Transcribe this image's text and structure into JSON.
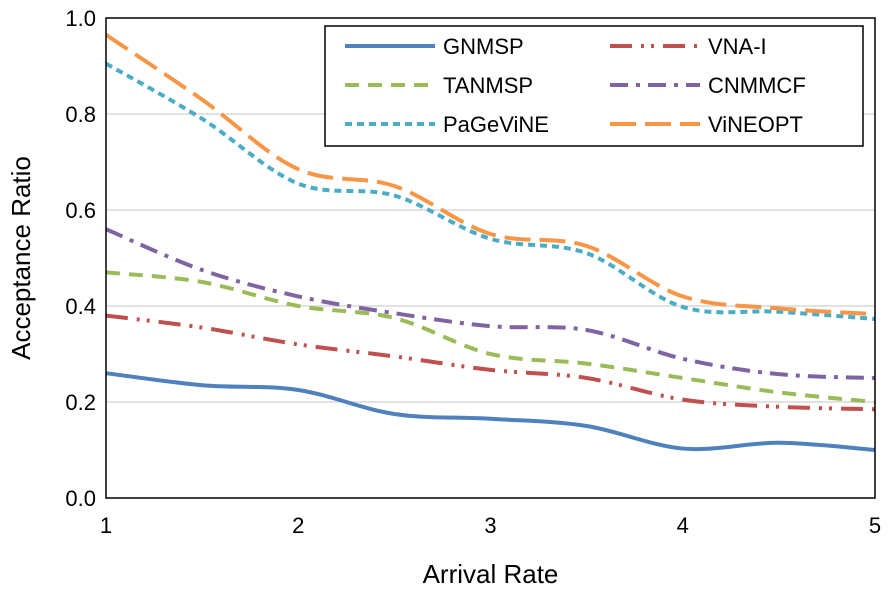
{
  "chart_data": {
    "type": "line",
    "title": "",
    "xlabel": "Arrival Rate",
    "ylabel": "Acceptance Ratio",
    "xlim": [
      1,
      5
    ],
    "ylim": [
      0,
      1
    ],
    "x_ticks": [
      1,
      2,
      3,
      4,
      5
    ],
    "x_tick_labels": [
      "1",
      "2",
      "3",
      "4",
      "5"
    ],
    "y_ticks": [
      0,
      0.2,
      0.4,
      0.6,
      0.8,
      1.0
    ],
    "y_tick_labels": [
      "0.0",
      "0.2",
      "0.4",
      "0.6",
      "0.8",
      "1.0"
    ],
    "grid": "horizontal",
    "legend_position": "top-right",
    "series": [
      {
        "name": "GNMSP",
        "color": "#4f81bd",
        "dash": "solid",
        "x": [
          1,
          1.5,
          2,
          2.5,
          3,
          3.5,
          4,
          4.5,
          5
        ],
        "values": [
          0.26,
          0.235,
          0.225,
          0.175,
          0.165,
          0.15,
          0.103,
          0.115,
          0.1
        ]
      },
      {
        "name": "TANMSP",
        "color": "#9bbb59",
        "dash": "dash",
        "x": [
          1,
          1.5,
          2,
          2.5,
          3,
          3.5,
          4,
          4.5,
          5
        ],
        "values": [
          0.47,
          0.45,
          0.4,
          0.375,
          0.3,
          0.28,
          0.25,
          0.22,
          0.2
        ]
      },
      {
        "name": "PaGeViNE",
        "color": "#4bacc6",
        "dash": "shortdash",
        "x": [
          1,
          1.5,
          2,
          2.5,
          3,
          3.5,
          4,
          4.5,
          5
        ],
        "values": [
          0.905,
          0.79,
          0.655,
          0.63,
          0.54,
          0.51,
          0.398,
          0.388,
          0.373
        ]
      },
      {
        "name": "VNA-I",
        "color": "#c0504d",
        "dash": "longdashdotdot",
        "x": [
          1,
          1.5,
          2,
          2.5,
          3,
          3.5,
          4,
          4.5,
          5
        ],
        "values": [
          0.38,
          0.355,
          0.32,
          0.295,
          0.267,
          0.25,
          0.205,
          0.19,
          0.185
        ]
      },
      {
        "name": "CNMMCF",
        "color": "#8064a2",
        "dash": "dashdot",
        "x": [
          1,
          1.5,
          2,
          2.5,
          3,
          3.5,
          4,
          4.5,
          5
        ],
        "values": [
          0.56,
          0.475,
          0.42,
          0.385,
          0.358,
          0.35,
          0.29,
          0.258,
          0.25
        ]
      },
      {
        "name": "ViNEOPT",
        "color": "#f79646",
        "dash": "longdash",
        "x": [
          1,
          1.5,
          2,
          2.5,
          3,
          3.5,
          4,
          4.5,
          5
        ],
        "values": [
          0.965,
          0.83,
          0.685,
          0.65,
          0.55,
          0.525,
          0.42,
          0.395,
          0.383
        ]
      }
    ]
  }
}
